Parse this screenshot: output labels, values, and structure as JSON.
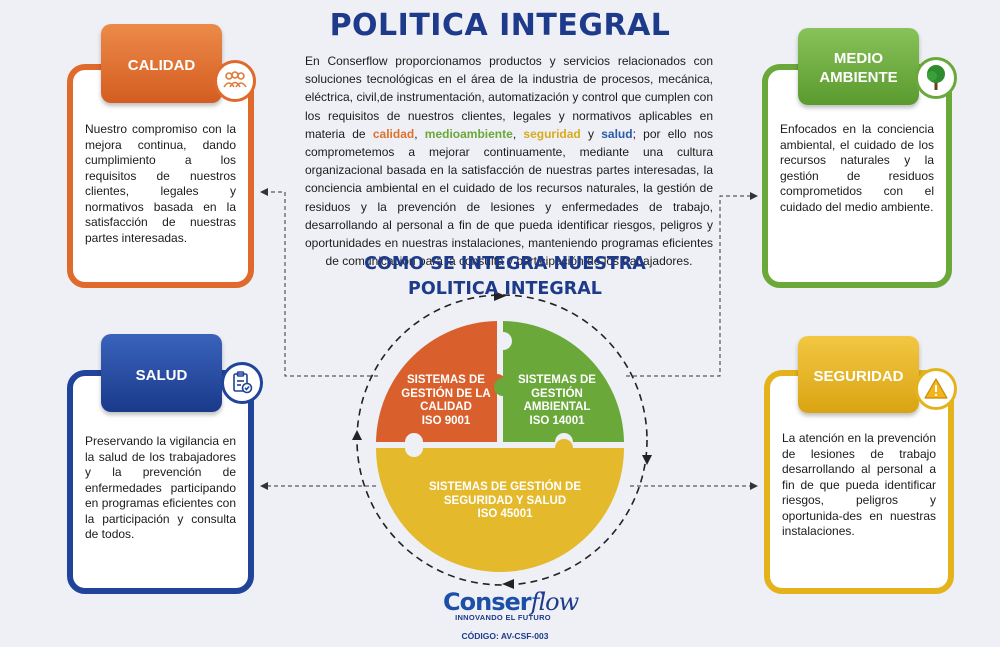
{
  "title": "POLITICA INTEGRAL",
  "intro": {
    "part1": "En Conserflow proporcionamos productos y servicios relacionados con soluciones tecnológicas en el área de la industria de procesos, mecánica, eléctrica, civil,de instrumentación, automatización y control que cumplen con los requisitos de nuestros clientes, legales y normativos aplicables en materia de ",
    "kw_calidad": "calidad",
    "sep1": ", ",
    "kw_medio": "medioambiente",
    "sep2": ", ",
    "kw_seguridad": "seguridad",
    "sep3": " y ",
    "kw_salud": "salud",
    "part2": "; por ello nos comprometemos a mejorar continuamente, mediante una cultura organizacional basada en la satisfacción de nuestras partes interesadas, la conciencia ambiental en el cuidado de los recursos naturales, la gestión de residuos y la prevención de lesiones y enfermedades de trabajo, desarrollando al personal a fin de que pueda identificar riesgos, peligros y oportunidades en nuestras instalaciones, manteniendo programas eficientes de comunicación para la consulta y participación de los trabajadores."
  },
  "subtitle_line1": "COMO SE INTEGRA NUESTRA",
  "subtitle_line2": "POLITICA INTEGRAL",
  "cards": {
    "calidad": {
      "title": "CALIDAD",
      "icon": "people-icon",
      "text": "Nuestro compromiso con la mejora continua, dando cumplimiento a los requisitos de nuestros clientes, legales y normativos basada en la satisfacción de nuestras partes interesadas."
    },
    "medio": {
      "title_line1": "MEDIO",
      "title_line2": "AMBIENTE",
      "icon": "tree-icon",
      "text": "Enfocados en la conciencia ambiental, el cuidado de los recursos naturales y la gestión de residuos comprometidos con el cuidado del medio ambiente."
    },
    "salud": {
      "title": "SALUD",
      "icon": "clipboard-check-icon",
      "text": "Preservando la vigilancia en la salud de los trabajadores y la prevención de enfermedades participando en programas eficientes con la participación y consulta de todos."
    },
    "seguridad": {
      "title": "SEGURIDAD",
      "icon": "warning-icon",
      "text": "La atención en la prevención de lesiones de trabajo desarrollando al personal a fin de que pueda identificar riesgos, peligros y oportunida-des en nuestras instalaciones."
    }
  },
  "circle": {
    "calidad": {
      "line1": "SISTEMAS DE",
      "line2": "GESTIÓN DE LA",
      "line3": "CALIDAD",
      "line4": "ISO 9001"
    },
    "ambiental": {
      "line1": "SISTEMAS DE",
      "line2": "GESTIÓN",
      "line3": "AMBIENTAL",
      "line4": "ISO 14001"
    },
    "seguridad": {
      "line1": "SISTEMAS DE GESTIÓN DE",
      "line2": "SEGURIDAD Y SALUD",
      "line3": "ISO 45001"
    }
  },
  "logo": {
    "conser": "Conser",
    "flow": "flow",
    "tagline": "INNOVANDO EL FUTURO"
  },
  "codigo": "CÓDIGO: AV-CSF-003",
  "colors": {
    "calidad": "#e0692c",
    "medio": "#6aa83a",
    "salud": "#1f4499",
    "seguridad": "#e4b31c",
    "title": "#1e3a8a"
  }
}
